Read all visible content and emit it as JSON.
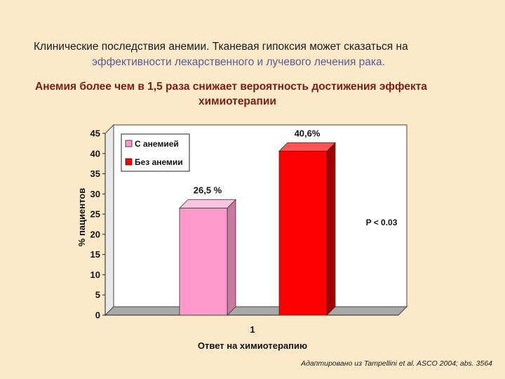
{
  "slide": {
    "title_line1": "Клинические последствия анемии. Тканевая гипоксия может сказаться  на",
    "title_line2": "эффективности лекарственного и лучевого лечения рака.",
    "subtitle_line1": "Анемия более чем в 1,5 раза снижает вероятность достижения эффекта",
    "subtitle_line2": "химиотерапии",
    "credit": "Адаптировано из Tampellini et al. ASCO 2004; abs. 3564"
  },
  "colors": {
    "background": "#fbe9c7",
    "plot_background": "#ffffff",
    "floor": "#a9a9a9",
    "with_anemia": "#ff99cc",
    "without_anemia": "#ff0000",
    "subtitle": "#7a1e14"
  },
  "chart_data": {
    "type": "bar",
    "categories": [
      "1"
    ],
    "series": [
      {
        "name": "С анемией",
        "values": [
          26.5
        ],
        "label": "26,5 %",
        "color": "#ff99cc"
      },
      {
        "name": "Без анемии",
        "values": [
          40.6
        ],
        "label": "40,6%",
        "color": "#ff0000"
      }
    ],
    "xlabel": "Ответ на химиотерапию",
    "ylabel": "% пациентов",
    "ylim": [
      0,
      45
    ],
    "yticks": [
      0,
      5,
      10,
      15,
      20,
      25,
      30,
      35,
      40,
      45
    ],
    "annotation": "P < 0.03",
    "legend_position": "top-left",
    "grid": false,
    "style": "3d"
  }
}
